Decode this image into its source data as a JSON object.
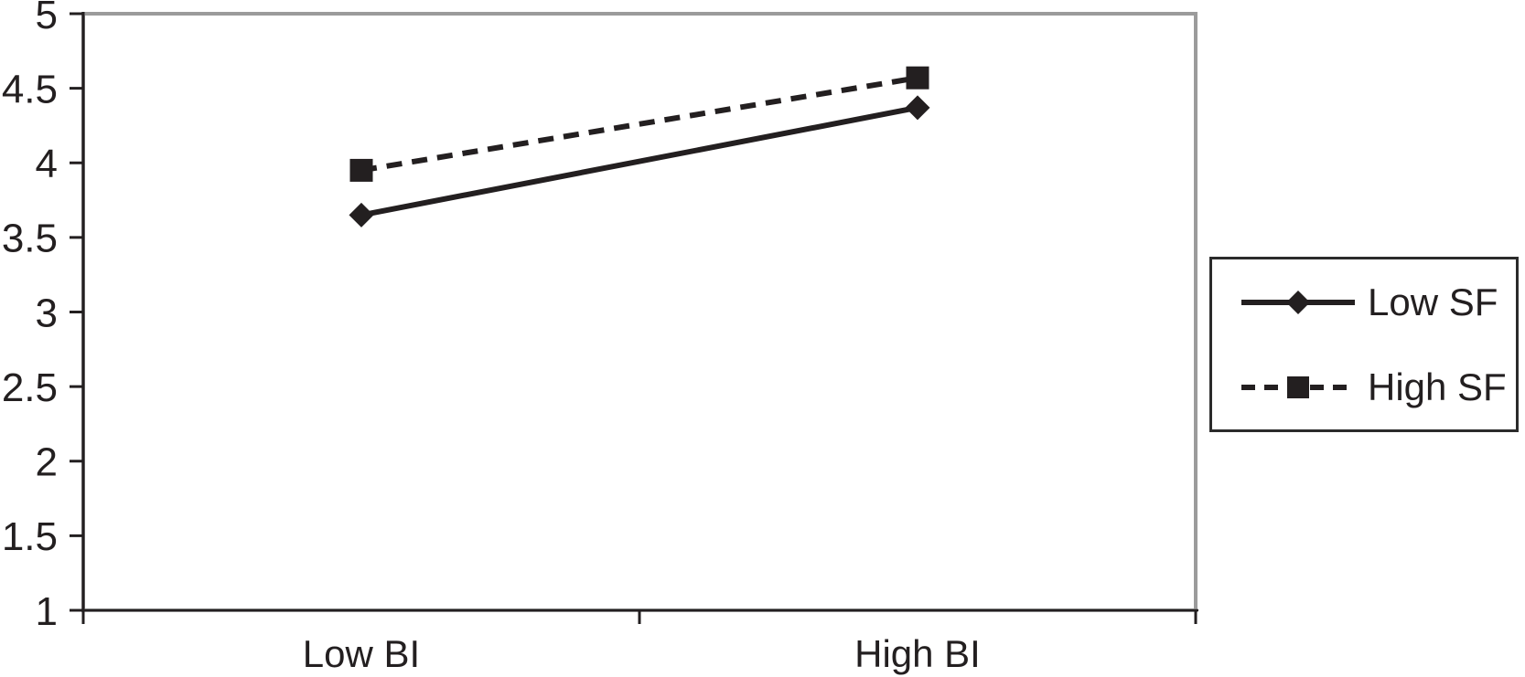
{
  "chart_data": {
    "type": "line",
    "title": "",
    "xlabel": "",
    "ylabel": "",
    "categories": [
      "Low BI",
      "High BI"
    ],
    "series": [
      {
        "name": "Low SF",
        "marker": "diamond",
        "line_style": "solid",
        "color": "#231f20",
        "values": [
          3.65,
          4.37
        ]
      },
      {
        "name": "High SF",
        "marker": "square",
        "line_style": "dashed",
        "color": "#231f20",
        "values": [
          3.95,
          4.57
        ]
      }
    ],
    "ylim": [
      1,
      5
    ],
    "ytick_step": 0.5,
    "yticks": [
      1,
      1.5,
      2,
      2.5,
      3,
      3.5,
      4,
      4.5,
      5
    ],
    "ytick_labels": [
      "1",
      "1.5",
      "2",
      "2.5",
      "3",
      "3.5",
      "4",
      "4.5",
      "5"
    ],
    "grid": "off",
    "legend_position": "right",
    "colors": {
      "series": "#231f20",
      "axis": "#231f20",
      "text": "#231f20",
      "plot_border": "#9b9b9b",
      "legend_border": "#2b2b2b",
      "background": "#ffffff"
    }
  }
}
